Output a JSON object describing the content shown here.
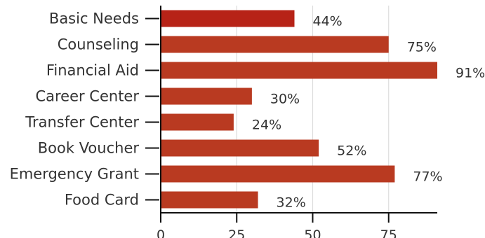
{
  "chart_data": {
    "type": "bar",
    "orientation": "horizontal",
    "categories": [
      "Basic Needs",
      "Counseling",
      "Financial Aid",
      "Career Center",
      "Transfer Center",
      "Book Voucher",
      "Emergency Grant",
      "Food Card"
    ],
    "values": [
      44,
      75,
      91,
      30,
      24,
      52,
      77,
      32
    ],
    "value_labels": [
      "44%",
      "75%",
      "91%",
      "30%",
      "24%",
      "52%",
      "77%",
      "32%"
    ],
    "xlim": [
      0,
      91
    ],
    "xticks": [
      0,
      25,
      50,
      75
    ],
    "xtick_labels": [
      "0",
      "25",
      "50",
      "75"
    ],
    "title": "",
    "xlabel": "",
    "ylabel": "",
    "grid": "vertical",
    "legend": "none",
    "colors": {
      "first_bar": "#b72317",
      "bars": "#b93a21",
      "grid": "#dddddd",
      "axis": "#111111",
      "text": "#333333"
    }
  }
}
